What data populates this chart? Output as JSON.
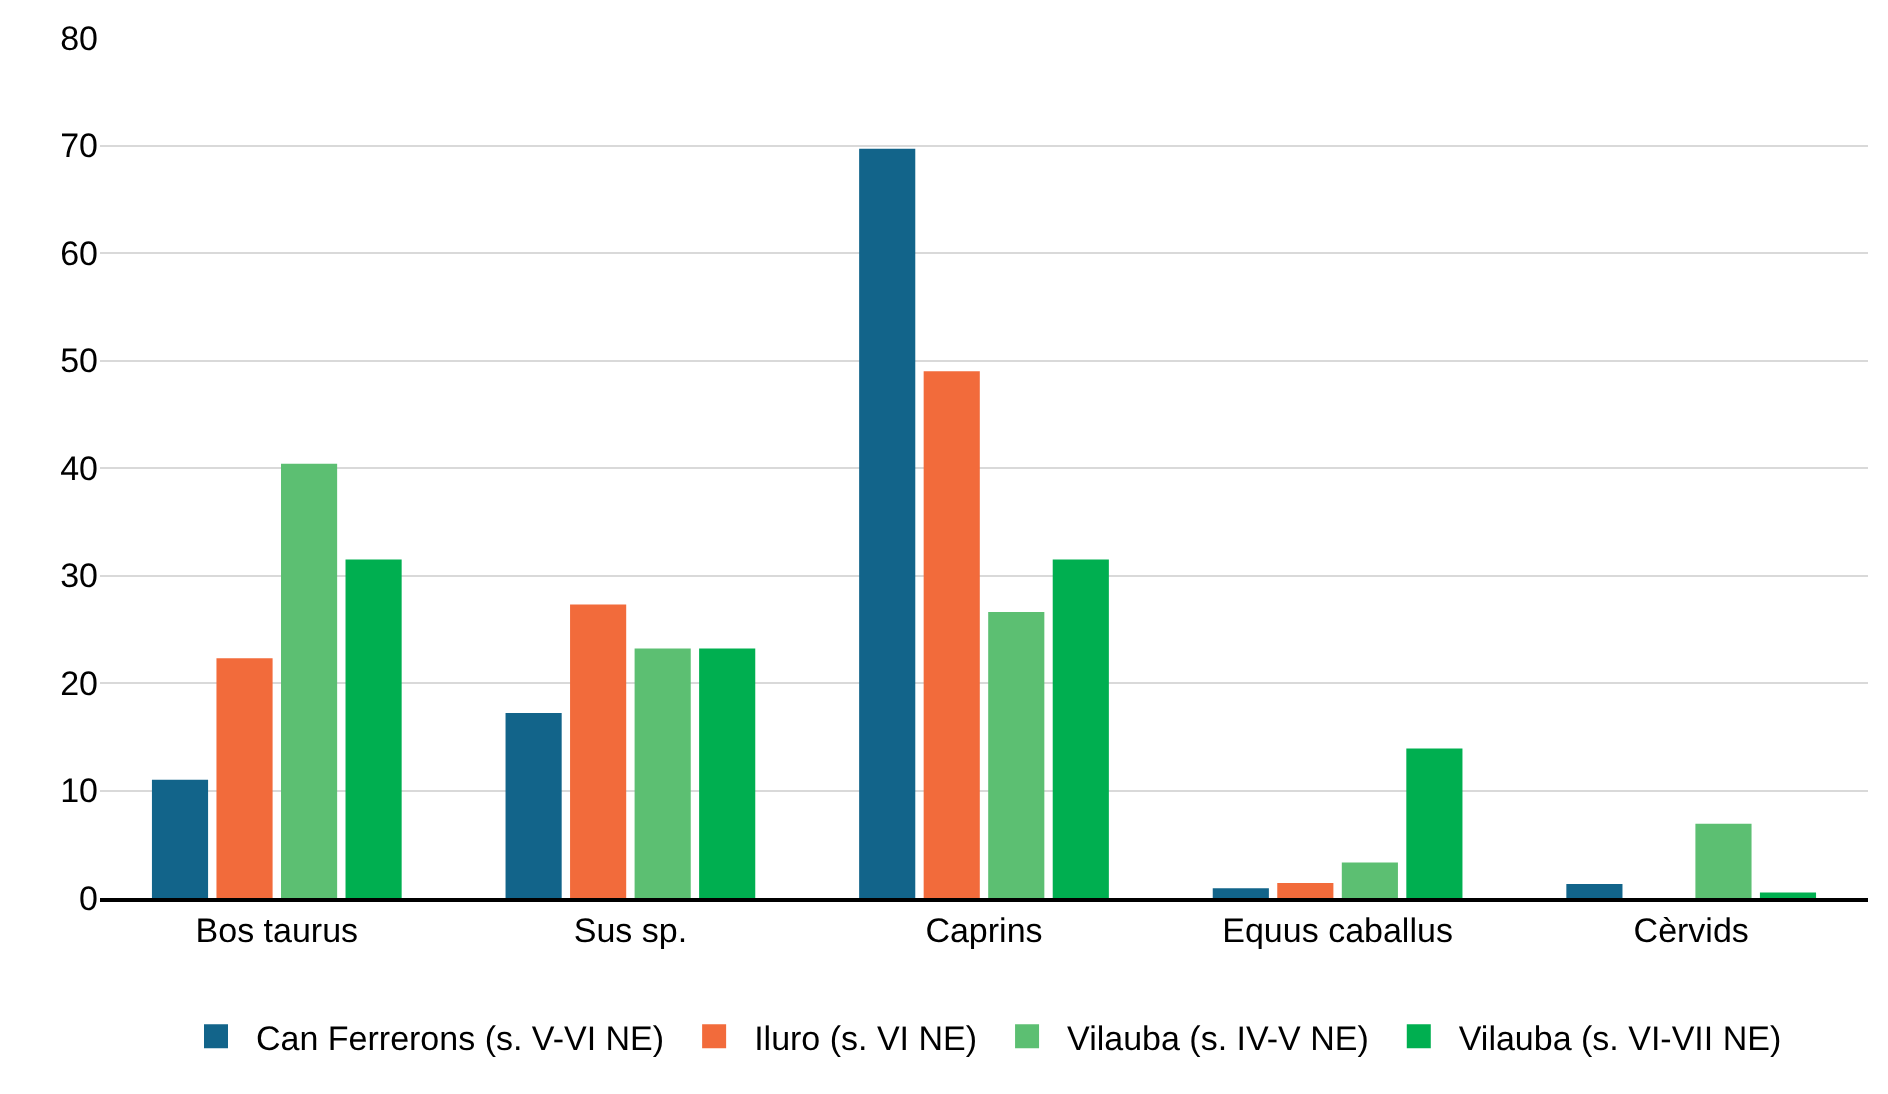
{
  "chart_data": {
    "type": "bar",
    "categories": [
      "Bos taurus",
      "Sus sp.",
      "Caprins",
      "Equus caballus",
      "Cèrvids"
    ],
    "series": [
      {
        "name": "Can Ferrerons (s. V-VI NE)",
        "color": "#12648a",
        "values": [
          11.0,
          17.2,
          69.7,
          0.9,
          1.3
        ]
      },
      {
        "name": "Iluro (s. VI NE)",
        "color": "#f26b3b",
        "values": [
          22.3,
          27.3,
          49.0,
          1.4,
          0
        ]
      },
      {
        "name": "Vilauba (s. IV-V NE)",
        "color": "#5cbf72",
        "values": [
          40.4,
          23.2,
          26.6,
          3.3,
          6.9
        ]
      },
      {
        "name": "Vilauba (s. VI-VII NE)",
        "color": "#00af50",
        "values": [
          31.5,
          23.2,
          31.5,
          13.9,
          0.5
        ]
      }
    ],
    "ylim": [
      0,
      80
    ],
    "yticks": [
      0,
      10,
      20,
      30,
      40,
      50,
      60,
      70,
      80
    ],
    "grid": "y",
    "legend": "bottom"
  }
}
